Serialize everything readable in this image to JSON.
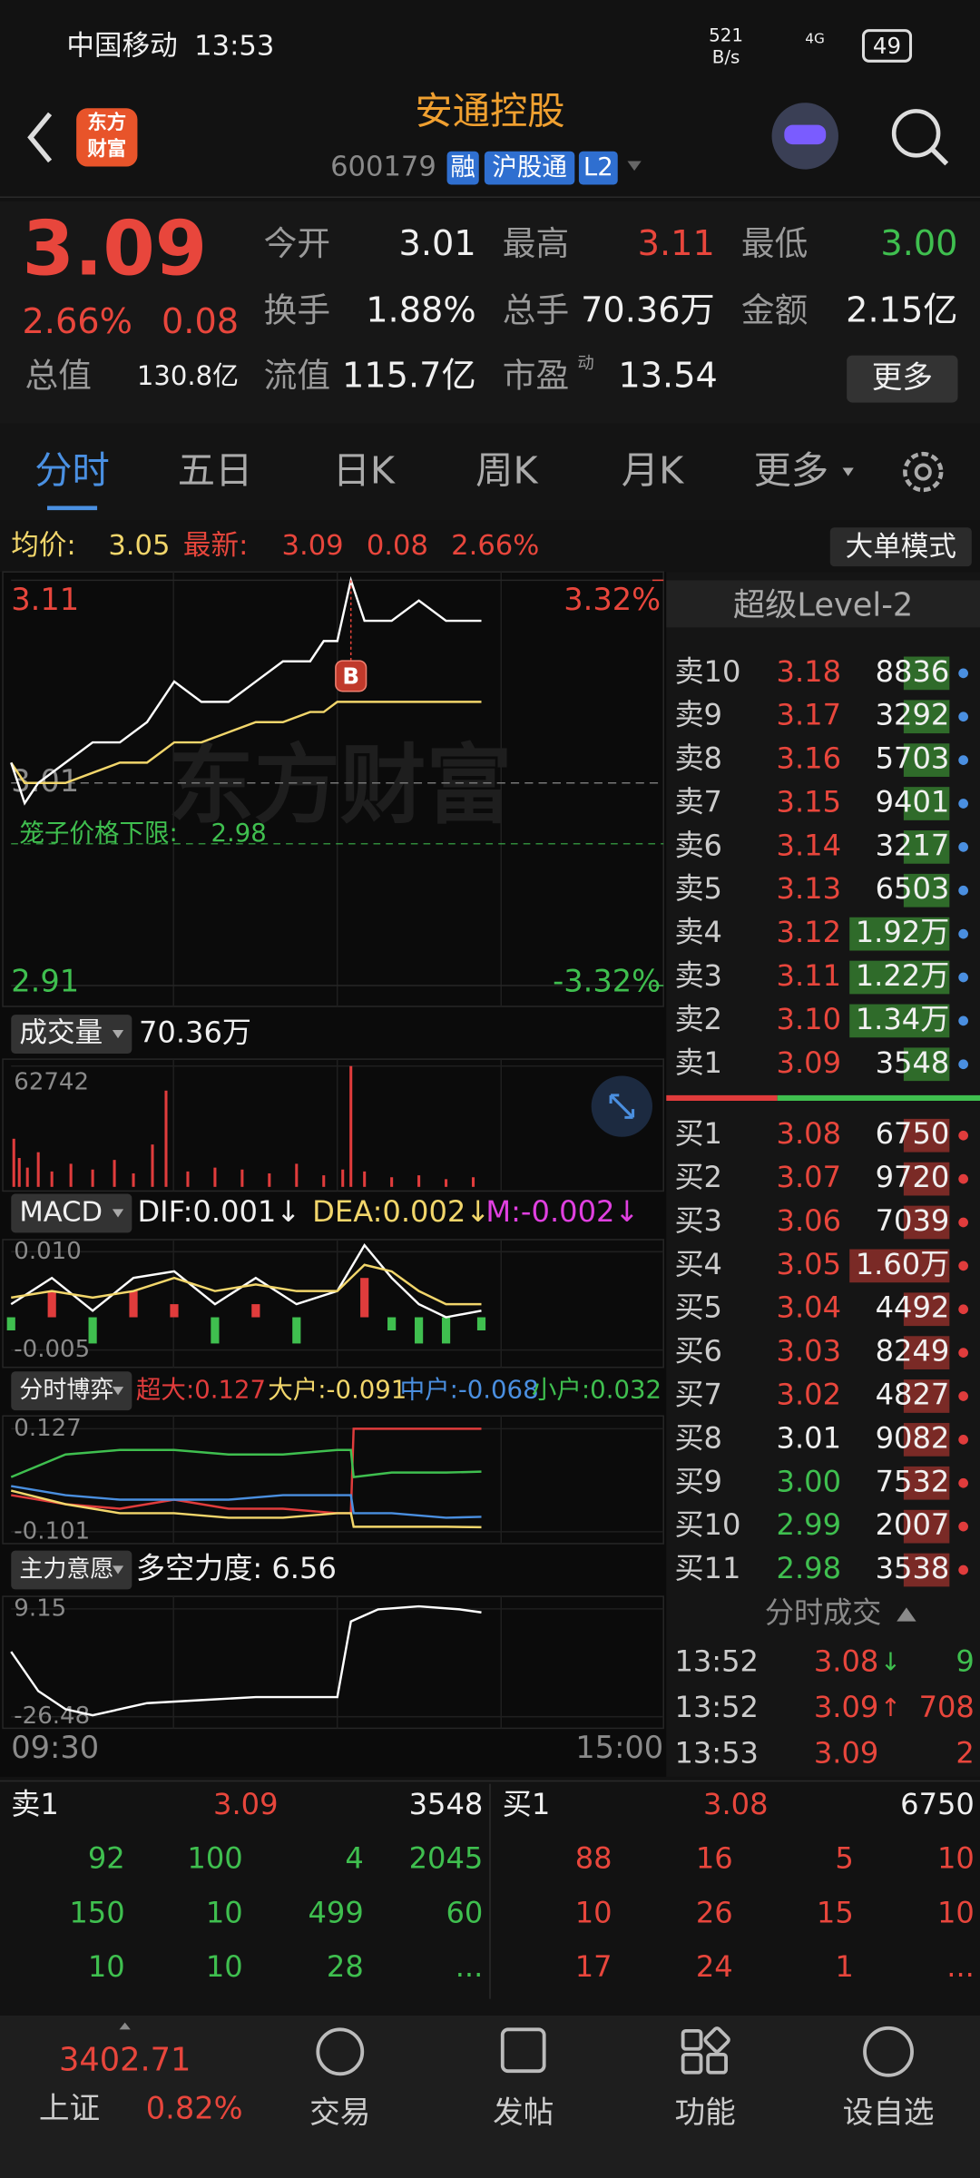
{
  "status": {
    "carrier": "中国移动",
    "time": "13:53",
    "speed": "521",
    "speed_unit": "B/s",
    "network": "4G",
    "battery": "49"
  },
  "header": {
    "logo": [
      "东方",
      "财富"
    ],
    "title": "安通控股",
    "code": "600179",
    "tags": [
      "融",
      "沪股通",
      "L2"
    ]
  },
  "quote": {
    "price": "3.09",
    "change_pct": "2.66%",
    "change": "0.08",
    "stats": [
      [
        "今开",
        "3.01"
      ],
      [
        "最高",
        "3.11"
      ],
      [
        "最低",
        "3.00"
      ],
      [
        "换手",
        "1.88%"
      ],
      [
        "总手",
        "70.36万"
      ],
      [
        "金额",
        "2.15亿"
      ],
      [
        "总值",
        "130.8亿"
      ],
      [
        "流值",
        "115.7亿"
      ],
      [
        "市盈",
        "13.54"
      ]
    ],
    "pe_mark": "动",
    "more": "更多"
  },
  "tabs": [
    "分时",
    "五日",
    "日K",
    "周K",
    "月K",
    "更多"
  ],
  "info": {
    "avg_label": "均价:",
    "avg": "3.05",
    "latest_label": "最新:",
    "latest": "3.09",
    "change": "0.08",
    "change_pct": "2.66%",
    "mode": "大单模式"
  },
  "chart_data": [
    {
      "type": "line",
      "watermark": "东方财富",
      "x": [
        "09:30",
        "09:35",
        "09:40",
        "09:50",
        "10:00",
        "10:10",
        "10:20",
        "10:25",
        "10:30",
        "10:40",
        "10:50",
        "11:00",
        "11:10",
        "11:20",
        "11:25",
        "11:30",
        "13:05",
        "13:10",
        "13:20",
        "13:30",
        "13:40",
        "13:53"
      ],
      "series": [
        {
          "color": "#ffffff",
          "values": [
            3.02,
            3.0,
            3.01,
            3.02,
            3.03,
            3.03,
            3.04,
            3.05,
            3.06,
            3.05,
            3.05,
            3.06,
            3.07,
            3.07,
            3.08,
            3.08,
            3.11,
            3.09,
            3.09,
            3.1,
            3.09,
            3.09
          ]
        },
        {
          "color": "#f2d66b",
          "values": [
            3.02,
            3.01,
            3.01,
            3.01,
            3.015,
            3.02,
            3.02,
            3.025,
            3.03,
            3.03,
            3.035,
            3.04,
            3.04,
            3.045,
            3.045,
            3.05,
            3.05,
            3.05,
            3.05,
            3.05,
            3.05,
            3.05
          ]
        }
      ],
      "ylim": [
        2.91,
        3.11
      ],
      "yticks": [
        3.11,
        3.01,
        2.91
      ],
      "y2lim": [
        -3.32,
        3.32
      ],
      "y2ticks": [
        {
          "value": 3.32,
          "label": "3.32%"
        },
        {
          "value": -3.32,
          "label": "-3.32%"
        }
      ],
      "cage_label": "笼子价格下限:",
      "cage_value": 2.98,
      "trade_marker": {
        "x": "13:05",
        "label": "B"
      }
    },
    {
      "type": "bar",
      "label": "成交量",
      "total": "70.36万",
      "color": "#e03c3c",
      "x": [
        "09:31",
        "09:33",
        "09:36",
        "09:40",
        "09:45",
        "09:52",
        "10:00",
        "10:08",
        "10:15",
        "10:22",
        "10:27",
        "10:35",
        "10:45",
        "10:55",
        "11:05",
        "11:15",
        "11:25",
        "13:02",
        "13:05",
        "13:10",
        "13:20",
        "13:30",
        "13:40",
        "13:50"
      ],
      "values": [
        25000,
        15000,
        10000,
        18000,
        8000,
        12000,
        9000,
        14000,
        7000,
        22000,
        50000,
        8000,
        10000,
        9000,
        7000,
        12000,
        6000,
        9000,
        62742,
        8000,
        5000,
        6000,
        4000,
        5000
      ],
      "ylim": [
        0,
        62742
      ],
      "yticks": [
        62742
      ]
    },
    {
      "type": "line",
      "label": "MACD",
      "legend": [
        "DIF:0.001↓",
        "DEA:0.002↓",
        "M:-0.002↓"
      ],
      "x": [
        "09:30",
        "09:45",
        "10:00",
        "10:15",
        "10:30",
        "10:45",
        "11:00",
        "11:15",
        "11:30",
        "13:10",
        "13:20",
        "13:30",
        "13:40",
        "13:53"
      ],
      "series": [
        {
          "color": "#ffffff",
          "values": [
            0.002,
            0.006,
            0.001,
            0.006,
            0.007,
            0.002,
            0.006,
            0.002,
            0.004,
            0.011,
            0.006,
            0.002,
            0.0,
            0.001
          ]
        },
        {
          "color": "#f2d66b",
          "values": [
            0.003,
            0.004,
            0.003,
            0.004,
            0.006,
            0.004,
            0.005,
            0.004,
            0.004,
            0.008,
            0.007,
            0.004,
            0.002,
            0.002
          ]
        },
        {
          "type": "bar",
          "color": "#e03c3c",
          "negative_color": "#3fbf4f",
          "values": [
            -0.002,
            0.004,
            -0.004,
            0.004,
            0.002,
            -0.004,
            0.002,
            -0.004,
            0.0,
            0.006,
            -0.002,
            -0.004,
            -0.004,
            -0.002
          ]
        }
      ],
      "ylim": [
        -0.007,
        0.011
      ],
      "yticks": [
        {
          "value": 0.01,
          "label": "0.010"
        },
        -0.005
      ]
    },
    {
      "type": "line",
      "label": "分时博弈",
      "legend": [
        "超大:0.127",
        "大户:-0.091",
        "中户:-0.068",
        "小户:0.032"
      ],
      "x": [
        "09:30",
        "09:50",
        "10:10",
        "10:30",
        "10:50",
        "11:10",
        "11:30",
        "13:05",
        "13:06",
        "13:20",
        "13:40",
        "13:53"
      ],
      "series": [
        {
          "color": "#e03c3c",
          "values": [
            -0.02,
            -0.04,
            -0.05,
            -0.03,
            -0.05,
            -0.05,
            -0.06,
            -0.06,
            0.127,
            0.127,
            0.127,
            0.127
          ]
        },
        {
          "color": "#f2d66b",
          "values": [
            -0.01,
            -0.04,
            -0.06,
            -0.06,
            -0.07,
            -0.07,
            -0.06,
            -0.06,
            -0.09,
            -0.09,
            -0.09,
            -0.091
          ]
        },
        {
          "color": "#4a8fe0",
          "values": [
            0.0,
            -0.02,
            -0.03,
            -0.03,
            -0.03,
            -0.02,
            -0.02,
            -0.02,
            -0.06,
            -0.06,
            -0.07,
            -0.068
          ]
        },
        {
          "color": "#3fbf4f",
          "values": [
            0.02,
            0.07,
            0.08,
            0.08,
            0.07,
            0.07,
            0.08,
            0.08,
            0.02,
            0.03,
            0.03,
            0.032
          ]
        }
      ],
      "ylim": [
        -0.115,
        0.14
      ],
      "yticks": [
        0.127,
        -0.101
      ]
    },
    {
      "type": "line",
      "label": "主力意愿",
      "legend": [
        "多空力度: 6.56"
      ],
      "x": [
        "09:30",
        "09:40",
        "09:50",
        "10:00",
        "10:20",
        "10:40",
        "11:00",
        "11:20",
        "11:30",
        "13:05",
        "13:15",
        "13:30",
        "13:45",
        "13:53"
      ],
      "series": [
        {
          "color": "#ffffff",
          "values": [
            -5,
            -18,
            -24,
            -26,
            -22,
            -21,
            -20,
            -20,
            -20,
            5,
            9,
            10,
            9,
            8
          ]
        }
      ],
      "ylim": [
        -28,
        11
      ],
      "yticks": [
        9.15,
        -26.48
      ],
      "xticks": [
        "09:30",
        "15:00"
      ]
    }
  ],
  "order_book": {
    "title": "超级Level-2",
    "asks": [
      [
        "卖10",
        "3.18",
        "8836"
      ],
      [
        "卖9",
        "3.17",
        "3292"
      ],
      [
        "卖8",
        "3.16",
        "5703"
      ],
      [
        "卖7",
        "3.15",
        "9401"
      ],
      [
        "卖6",
        "3.14",
        "3217"
      ],
      [
        "卖5",
        "3.13",
        "6503"
      ],
      [
        "卖4",
        "3.12",
        "1.92万"
      ],
      [
        "卖3",
        "3.11",
        "1.22万"
      ],
      [
        "卖2",
        "3.10",
        "1.34万"
      ],
      [
        "卖1",
        "3.09",
        "3548"
      ]
    ],
    "bids": [
      [
        "买1",
        "3.08",
        "6750"
      ],
      [
        "买2",
        "3.07",
        "9720"
      ],
      [
        "买3",
        "3.06",
        "7039"
      ],
      [
        "买4",
        "3.05",
        "1.60万"
      ],
      [
        "买5",
        "3.04",
        "4492"
      ],
      [
        "买6",
        "3.03",
        "8249"
      ],
      [
        "买7",
        "3.02",
        "4827"
      ],
      [
        "买8",
        "3.01",
        "9082"
      ],
      [
        "买9",
        "3.00",
        "7532"
      ],
      [
        "买10",
        "2.99",
        "2007"
      ],
      [
        "买11",
        "2.98",
        "3538"
      ]
    ]
  },
  "trades": {
    "title": "分时成交",
    "rows": [
      [
        "13:52",
        "3.08",
        "↓",
        "9"
      ],
      [
        "13:52",
        "3.09",
        "↑",
        "708"
      ],
      [
        "13:53",
        "3.09",
        "",
        "2"
      ]
    ]
  },
  "queue": {
    "sell": {
      "label": "卖1",
      "price": "3.09",
      "volume": "3548",
      "rows": [
        [
          "92",
          "100",
          "4",
          "2045"
        ],
        [
          "150",
          "10",
          "499",
          "60"
        ],
        [
          "10",
          "10",
          "28",
          "..."
        ]
      ]
    },
    "buy": {
      "label": "买1",
      "price": "3.08",
      "volume": "6750",
      "rows": [
        [
          "88",
          "16",
          "5",
          "10"
        ],
        [
          "10",
          "26",
          "15",
          "10"
        ],
        [
          "17",
          "24",
          "1",
          "..."
        ]
      ]
    }
  },
  "nav": {
    "index_value": "3402.71",
    "index_name": "上证",
    "index_pct": "0.82%",
    "items": [
      "交易",
      "发帖",
      "功能",
      "设自选"
    ]
  }
}
